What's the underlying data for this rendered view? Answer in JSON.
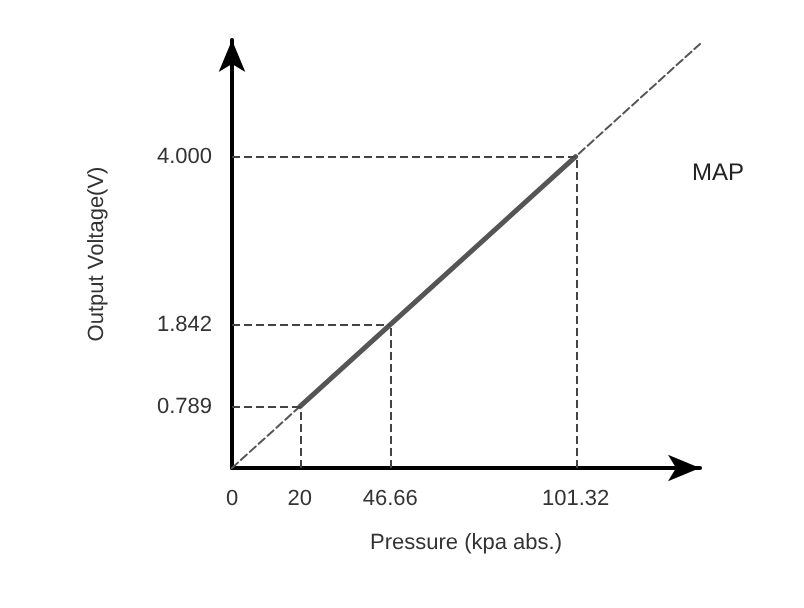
{
  "chart_data": {
    "type": "line",
    "xlabel": "Pressure (kpa abs.)",
    "ylabel": "Output Voltage(V)",
    "xlim": [
      0,
      138
    ],
    "ylim": [
      0,
      5.5
    ],
    "xticks": [
      0,
      20,
      46.66,
      101.32
    ],
    "yticks": [
      {
        "value": 0.789,
        "label": "0.789"
      },
      {
        "value": 1.842,
        "label": "1.842"
      },
      {
        "value": 4,
        "label": "4.000"
      }
    ],
    "series": [
      {
        "color": "#555555",
        "x": [
          20,
          46.66,
          101.32
        ],
        "values": [
          0.789,
          1.842,
          4.0
        ],
        "line_style": "solid"
      },
      {
        "color": "#555555",
        "x": [
          0,
          138
        ],
        "values": [
          0,
          5.45
        ],
        "line_style": "dashed"
      }
    ],
    "ref_lines": [
      {
        "axis": "x",
        "value": 20,
        "line_style": "dashed",
        "color": "#444444"
      },
      {
        "axis": "x",
        "value": 46.66,
        "line_style": "dashed",
        "color": "#444444"
      },
      {
        "axis": "x",
        "value": 101.32,
        "line_style": "dashed",
        "color": "#444444"
      },
      {
        "axis": "y",
        "value": 0.789,
        "line_style": "dashed",
        "color": "#444444"
      },
      {
        "axis": "y",
        "value": 1.842,
        "line_style": "dashed",
        "color": "#444444"
      },
      {
        "axis": "y",
        "value": 4,
        "line_style": "dashed",
        "color": "#444444"
      }
    ],
    "annotations": [
      "MAP"
    ],
    "grid": false,
    "marker": "none"
  }
}
